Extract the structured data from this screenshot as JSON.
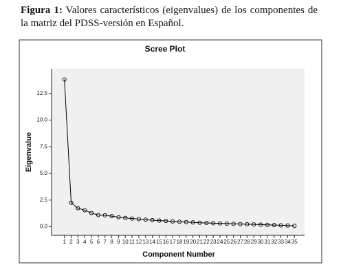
{
  "caption": {
    "label": "Figura 1:",
    "text": "Valores característicos (eigenvalues) de los componentes de la matriz del PDSS-versión en Español."
  },
  "chart_data": {
    "type": "line",
    "title": "Scree Plot",
    "x_label": "Component Number",
    "y_label": "Eigenvalue",
    "x": [
      1,
      2,
      3,
      4,
      5,
      6,
      7,
      8,
      9,
      10,
      11,
      12,
      13,
      14,
      15,
      16,
      17,
      18,
      19,
      20,
      21,
      22,
      23,
      24,
      25,
      26,
      27,
      28,
      29,
      30,
      31,
      32,
      33,
      34,
      35
    ],
    "series": [
      {
        "name": "Eigenvalue",
        "color": "#000000",
        "values": [
          13.8,
          2.25,
          1.74,
          1.55,
          1.29,
          1.1,
          1.08,
          1.0,
          0.9,
          0.83,
          0.77,
          0.72,
          0.67,
          0.62,
          0.58,
          0.55,
          0.5,
          0.47,
          0.44,
          0.41,
          0.38,
          0.36,
          0.34,
          0.32,
          0.3,
          0.28,
          0.26,
          0.24,
          0.22,
          0.2,
          0.18,
          0.16,
          0.14,
          0.12,
          0.09
        ]
      }
    ],
    "xlim": [
      -0.9,
      36.5
    ],
    "ylim": [
      -0.8,
      14.8
    ],
    "yticks": [
      {
        "value": 0,
        "label": "0.0"
      },
      {
        "value": 2.5,
        "label": "2.5"
      },
      {
        "value": 5,
        "label": "5.0"
      },
      {
        "value": 7.5,
        "label": "7.5"
      },
      {
        "value": 10,
        "label": "10.0"
      },
      {
        "value": 12.5,
        "label": "12.5"
      }
    ],
    "plot_background": "#f0f0f0"
  }
}
